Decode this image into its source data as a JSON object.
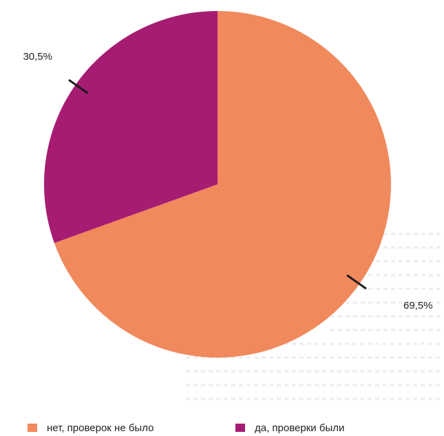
{
  "chart_data": {
    "type": "pie",
    "title": "",
    "start": "12 o'clock",
    "direction": "clockwise",
    "categories": [
      "нет, проверок не было",
      "да, проверки были"
    ],
    "values": [
      69.5,
      30.5
    ],
    "data_labels": [
      "69,5%",
      "30,5%"
    ],
    "colors": [
      "#f0895c",
      "#a61c72"
    ],
    "legend": {
      "placement": "bottom",
      "entries": [
        "нет, проверок не было",
        "да, проверки были"
      ]
    }
  }
}
